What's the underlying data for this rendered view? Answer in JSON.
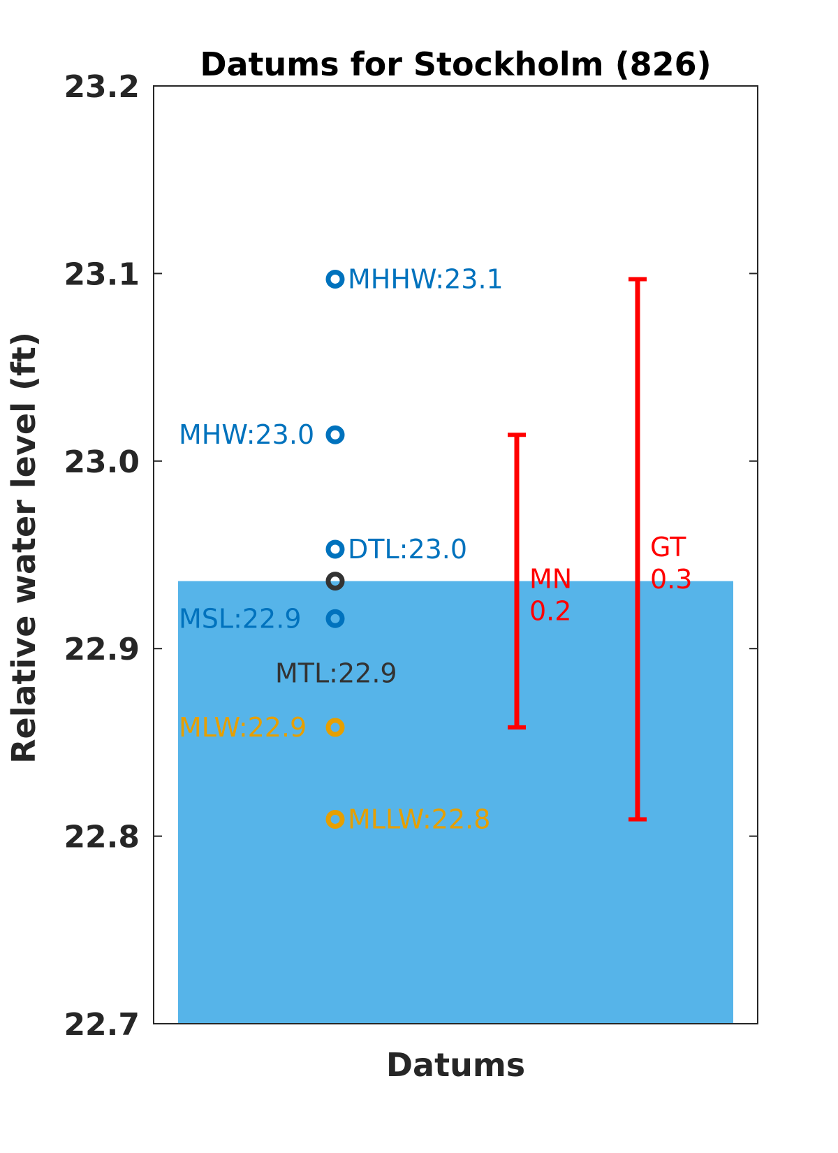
{
  "chart_data": {
    "type": "scatter",
    "title": "Datums for Stockholm (826)",
    "xlabel": "Datums",
    "ylabel": "Relative water level (ft)",
    "ylim": [
      22.7,
      23.2
    ],
    "yticks": [
      "22.7",
      "22.8",
      "22.9",
      "23.0",
      "23.1",
      "23.2"
    ],
    "grid": false,
    "water_level": 22.936,
    "colors": {
      "high": "#0072bd",
      "mid": "#333333",
      "low": "#e69f00",
      "range": "#ff0000",
      "water": "#56b4e9"
    },
    "points": [
      {
        "label": "MHHW:23.1",
        "y": 23.097,
        "color": "#0072bd",
        "side": "right"
      },
      {
        "label": "MHW:23.0",
        "y": 23.014,
        "color": "#0072bd",
        "side": "left"
      },
      {
        "label": "DTL:23.0",
        "y": 22.953,
        "color": "#0072bd",
        "side": "right"
      },
      {
        "label": "MTL:22.9",
        "y": 22.936,
        "color": "#333333",
        "side": "below"
      },
      {
        "label": "MSL:22.9",
        "y": 22.916,
        "color": "#0072bd",
        "side": "left"
      },
      {
        "label": "MLW:22.9",
        "y": 22.858,
        "color": "#e69f00",
        "side": "left"
      },
      {
        "label": "MLLW:22.8",
        "y": 22.809,
        "color": "#e69f00",
        "side": "right"
      }
    ],
    "ranges": [
      {
        "name": "MN",
        "value": "0.2",
        "low": 22.858,
        "high": 23.014,
        "position": "inner"
      },
      {
        "name": "GT",
        "value": "0.3",
        "low": 22.809,
        "high": 23.097,
        "position": "outer"
      }
    ]
  }
}
